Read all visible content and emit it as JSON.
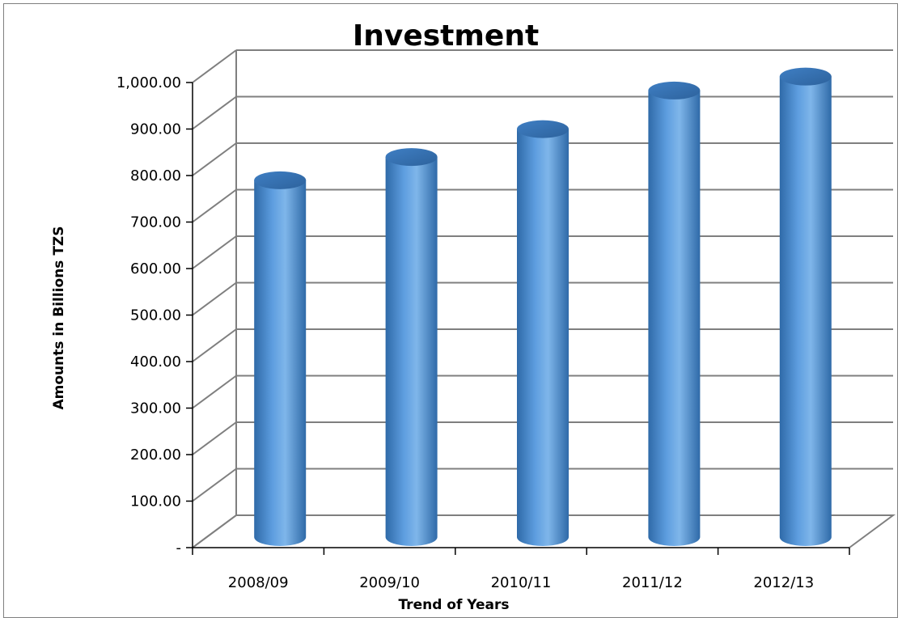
{
  "chart_data": {
    "type": "bar",
    "style": "3d-cylinder",
    "title": "Investment",
    "xlabel": "Trend of Years",
    "ylabel": "Amounts in Billions TZS",
    "categories": [
      "2008/09",
      "2009/10",
      "2010/11",
      "2011/12",
      "2012/13"
    ],
    "values": [
      755,
      805,
      865,
      948,
      978
    ],
    "ylim": [
      0,
      1000
    ],
    "yticks": [
      0,
      100,
      200,
      300,
      400,
      500,
      600,
      700,
      800,
      900,
      1000
    ],
    "ytick_labels": [
      "-",
      "100.00",
      "200.00",
      "300.00",
      "400.00",
      "500.00",
      "600.00",
      "700.00",
      "800.00",
      "900.00",
      "1,000.00"
    ],
    "grid": true,
    "legend": "none",
    "colors": {
      "bar": "#4f8fd6",
      "bar_light": "#7fb6ea",
      "bar_dark": "#2f6aa8",
      "grid": "#7f7f7f"
    }
  }
}
